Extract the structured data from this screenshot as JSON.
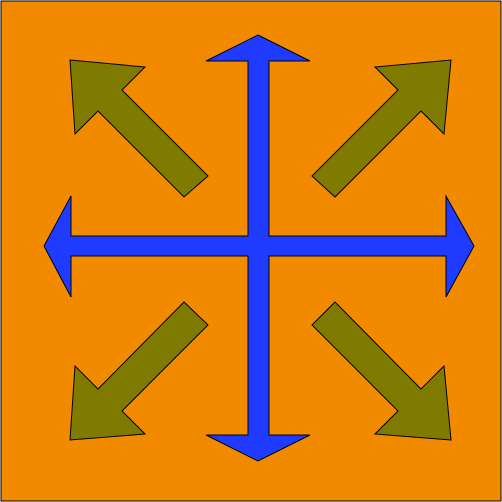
{
  "icon": {
    "name": "move-arrows-icon",
    "colors": {
      "background": "#F28A00",
      "primary_arrows": "#1F3BFF",
      "diagonal_arrows": "#7F7A00",
      "outline": "#000000"
    },
    "arrows": {
      "cardinal": [
        "up",
        "down",
        "left",
        "right"
      ],
      "diagonal": [
        "up-left",
        "up-right",
        "down-left",
        "down-right"
      ]
    }
  }
}
